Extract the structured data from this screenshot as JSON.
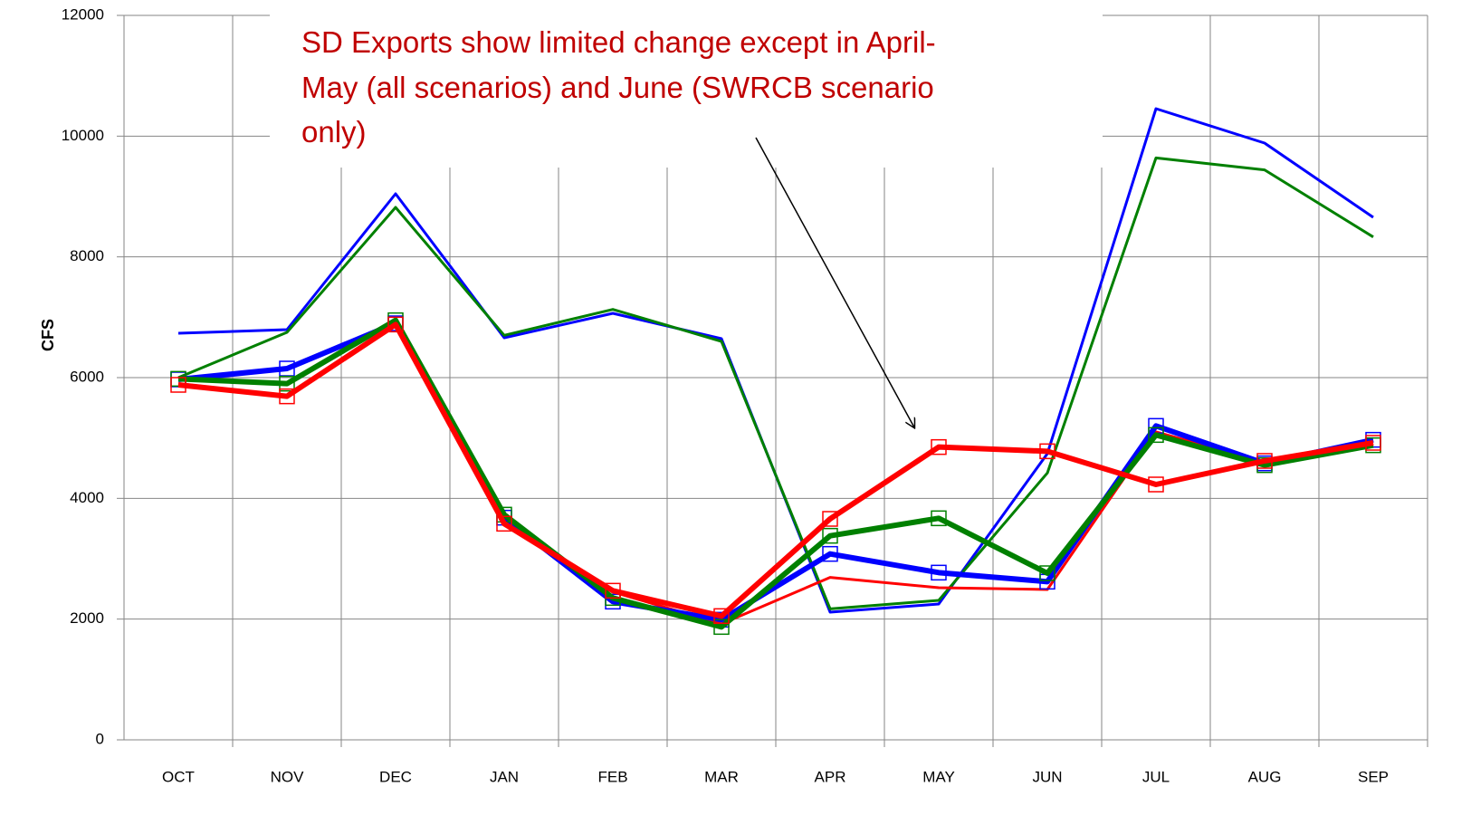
{
  "chart_data": {
    "type": "line",
    "ylabel": "CFS",
    "annotation": [
      "SD Exports show limited change except in April-",
      "May (all scenarios) and June (SWRCB scenario",
      "only)"
    ],
    "annotation_color": "#c00000",
    "categories": [
      "OCT",
      "NOV",
      "DEC",
      "JAN",
      "FEB",
      "MAR",
      "APR",
      "MAY",
      "JUN",
      "JUL",
      "AUG",
      "SEP"
    ],
    "ylim": [
      0,
      12000
    ],
    "yticks": [
      0,
      2000,
      4000,
      6000,
      8000,
      10000,
      12000
    ],
    "grid": true,
    "series": [
      {
        "color": "#0000ff",
        "line_width": 3,
        "markers": false,
        "values": [
          6735,
          6795,
          9045,
          6660,
          7065,
          6645,
          2115,
          2250,
          4740,
          10455,
          9885,
          8655
        ]
      },
      {
        "color": "#008000",
        "line_width": 3,
        "markers": false,
        "values": [
          6000,
          6750,
          8820,
          6700,
          7130,
          6600,
          2170,
          2310,
          4420,
          9640,
          9440,
          8330
        ]
      },
      {
        "color": "#ff0000",
        "line_width": 3,
        "markers": false,
        "values": [
          5900,
          5700,
          6900,
          3600,
          2450,
          1920,
          2690,
          2520,
          2490,
          5100,
          4600,
          4900
        ]
      },
      {
        "color": "#0000ff",
        "line_width": 6,
        "markers": true,
        "values": [
          5970,
          6150,
          6900,
          3680,
          2290,
          1990,
          3080,
          2770,
          2620,
          5200,
          4580,
          4970
        ]
      },
      {
        "color": "#008000",
        "line_width": 6,
        "markers": true,
        "values": [
          5980,
          5900,
          6950,
          3730,
          2350,
          1870,
          3380,
          3670,
          2760,
          5050,
          4550,
          4880
        ]
      },
      {
        "color": "#ff0000",
        "line_width": 6,
        "markers": true,
        "values": [
          5880,
          5690,
          6880,
          3580,
          2470,
          2050,
          3660,
          4850,
          4780,
          4230,
          4620,
          4920
        ]
      }
    ]
  }
}
